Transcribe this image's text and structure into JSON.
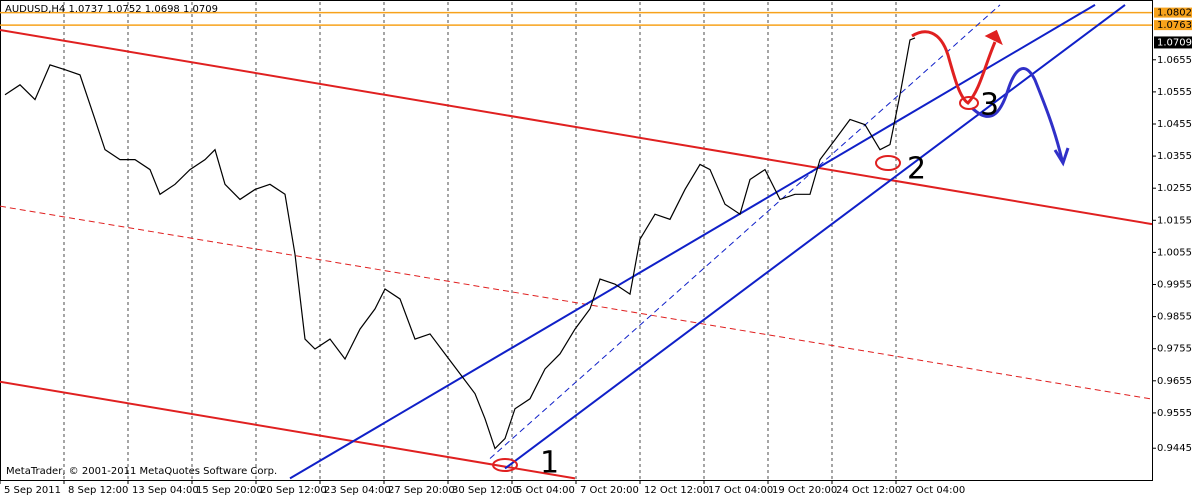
{
  "chart_data": {
    "type": "line",
    "title": "AUDUSD,H4  1.0737 1.0752 1.0698 1.0709",
    "footer": "MetaTrader, © 2001-2011 MetaQuotes Software Corp.",
    "xlim": [
      0,
      288
    ],
    "ylim": [
      0.9346,
      1.0835
    ],
    "xticks": [
      {
        "value": 0,
        "label": "5 Sep 2011"
      },
      {
        "value": 16,
        "label": "8 Sep 12:00"
      },
      {
        "value": 32,
        "label": "13 Sep 04:00"
      },
      {
        "value": 48,
        "label": "15 Sep 20:00"
      },
      {
        "value": 64,
        "label": "20 Sep 12:00"
      },
      {
        "value": 80,
        "label": "23 Sep 04:00"
      },
      {
        "value": 96,
        "label": "27 Sep 20:00"
      },
      {
        "value": 112,
        "label": "30 Sep 12:00"
      },
      {
        "value": 128,
        "label": "5 Oct 04:00"
      },
      {
        "value": 144,
        "label": "7 Oct 20:00"
      },
      {
        "value": 160,
        "label": "12 Oct 12:00"
      },
      {
        "value": 176,
        "label": "17 Oct 04:00"
      },
      {
        "value": 192,
        "label": "19 Oct 20:00"
      },
      {
        "value": 208,
        "label": "24 Oct 12:00"
      },
      {
        "value": 224,
        "label": "27 Oct 04:00"
      }
    ],
    "yticks": [
      1.0655,
      1.0555,
      1.0455,
      1.0355,
      1.0255,
      1.0155,
      1.0055,
      0.9955,
      0.9855,
      0.9755,
      0.9655,
      0.9555,
      0.9445
    ],
    "series": [
      {
        "name": "AUDUSD,H4",
        "color": "#000000",
        "x": [
          1.25,
          5,
          8.75,
          12.5,
          16.25,
          20,
          23.75,
          26.25,
          30,
          33.75,
          37.5,
          40,
          43.75,
          47.5,
          51.25,
          53.75,
          56.25,
          60,
          63.75,
          67.5,
          71.25,
          73.75,
          76.25,
          78.75,
          82.5,
          86.25,
          90,
          93.75,
          96.25,
          100,
          103.75,
          107.5,
          111.25,
          115,
          118.75,
          121.25,
          123.75,
          126.25,
          128.75,
          132.5,
          136.25,
          140,
          143.75,
          147.5,
          150,
          153.75,
          157.5,
          160,
          163.75,
          167.5,
          171.25,
          175,
          177.5,
          181.25,
          185,
          187.5,
          191.25,
          195,
          198.75,
          202.5,
          205,
          208.75,
          212.5,
          216.25,
          220,
          222.5,
          225,
          227.5,
          228.75
        ],
        "values": [
          1.0546,
          1.0577,
          1.0531,
          1.0639,
          1.0624,
          1.0608,
          1.0469,
          1.0375,
          1.0344,
          1.0344,
          1.0313,
          1.0236,
          1.0267,
          1.0313,
          1.0344,
          1.0375,
          1.0267,
          1.022,
          1.0251,
          1.0267,
          1.0236,
          1.0049,
          0.9785,
          0.9754,
          0.9785,
          0.9723,
          0.9816,
          0.9879,
          0.9941,
          0.991,
          0.9785,
          0.9801,
          0.9739,
          0.9677,
          0.9615,
          0.9537,
          0.9444,
          0.9475,
          0.9568,
          0.9599,
          0.9692,
          0.9739,
          0.9816,
          0.9879,
          0.9972,
          0.9956,
          0.9925,
          1.0096,
          1.0174,
          1.0158,
          1.0251,
          1.0329,
          1.0313,
          1.0205,
          1.0174,
          1.0282,
          1.0313,
          1.022,
          1.0236,
          1.0236,
          1.0344,
          1.0406,
          1.0469,
          1.0453,
          1.0375,
          1.0391,
          1.0546,
          1.0717,
          1.0723
        ]
      }
    ],
    "levels": [
      {
        "value": 1.0802,
        "color": "#f7a21b"
      },
      {
        "value": 1.0763,
        "color": "#f7a21b"
      }
    ],
    "current_price": 1.0709,
    "trendlines": [
      {
        "color": "#e02020",
        "points": [
          [
            0,
            1.0748
          ],
          [
            288,
            1.0143
          ]
        ]
      },
      {
        "color": "#e02020",
        "dashed": true,
        "points": [
          [
            0,
            1.0199
          ],
          [
            287.5,
            0.9599
          ]
        ]
      },
      {
        "color": "#e02020",
        "points": [
          [
            0,
            0.9652
          ],
          [
            143.75,
            0.9351
          ]
        ]
      },
      {
        "color": "#1020c8",
        "points": [
          [
            72.5,
            0.9351
          ],
          [
            273.75,
            1.0826
          ]
        ]
      },
      {
        "color": "#1020c8",
        "points": [
          [
            126.25,
            0.9382
          ],
          [
            281.25,
            1.0826
          ]
        ]
      },
      {
        "color": "#1020c8",
        "dashed": true,
        "points": [
          [
            122.5,
            0.9413
          ],
          [
            250,
            1.0826
          ]
        ]
      }
    ],
    "annotations": [
      "1",
      "2",
      "3"
    ]
  }
}
